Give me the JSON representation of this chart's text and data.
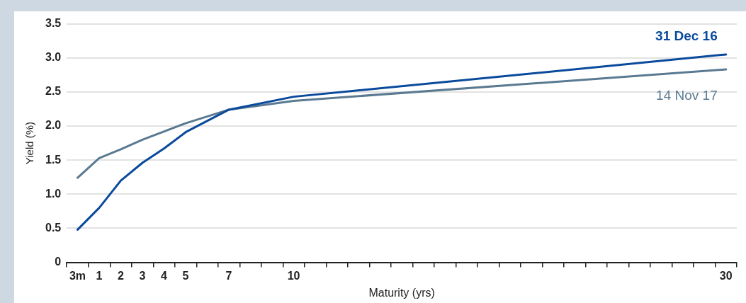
{
  "chart_data": {
    "type": "line",
    "xlabel": "Maturity (yrs)",
    "ylabel": "Yield (%)",
    "categories": [
      "3m",
      "1",
      "2",
      "3",
      "4",
      "5",
      null,
      "7",
      null,
      null,
      "10",
      null,
      null,
      null,
      null,
      null,
      null,
      null,
      null,
      null,
      null,
      null,
      null,
      null,
      null,
      null,
      null,
      null,
      null,
      null,
      "30"
    ],
    "ylim": [
      0,
      3.5
    ],
    "yticks": [
      0,
      0.5,
      {
        "value": 1,
        "label": "1.0"
      },
      1.5,
      {
        "value": 2,
        "label": "2.0"
      },
      2.5,
      {
        "value": 3,
        "label": "3.0"
      },
      3.5
    ],
    "grid": "y",
    "legend": false,
    "marker": "none",
    "line_style": "solid",
    "series": [
      {
        "name": "31 Dec 16",
        "color": "#0a4a9c",
        "values": [
          0.48,
          0.8,
          1.2,
          1.46,
          1.67,
          1.91,
          null,
          2.24,
          null,
          null,
          2.43,
          null,
          null,
          null,
          null,
          null,
          null,
          null,
          null,
          null,
          null,
          null,
          null,
          null,
          null,
          null,
          null,
          null,
          null,
          null,
          3.05
        ]
      },
      {
        "name": "14 Nov 17",
        "color": "#5a7a92",
        "values": [
          1.24,
          1.53,
          1.66,
          1.8,
          null,
          2.04,
          null,
          2.24,
          null,
          null,
          2.37,
          null,
          null,
          null,
          null,
          null,
          null,
          null,
          null,
          null,
          null,
          null,
          null,
          null,
          null,
          null,
          null,
          null,
          null,
          null,
          2.83
        ]
      }
    ]
  }
}
